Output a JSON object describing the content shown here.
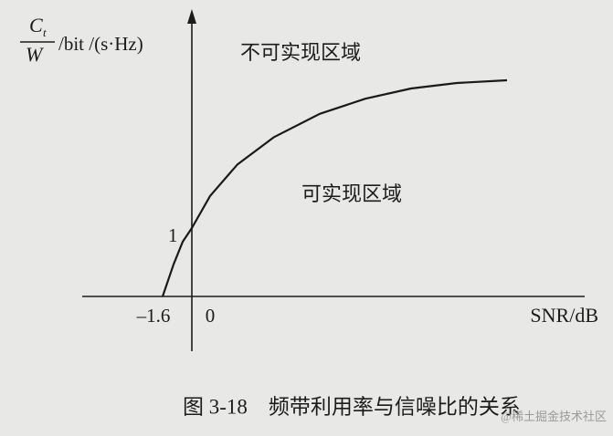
{
  "chart_data": {
    "type": "line",
    "y_label": {
      "numerator": "C",
      "numerator_subscript": "t",
      "denominator": "W",
      "unit": "/bit /(s·Hz)"
    },
    "x_label": "SNR/dB",
    "annotations": [
      "不可实现区域",
      "可实现区域"
    ],
    "caption": "图 3-18　频带利用率与信噪比的关系",
    "watermark": "@稀土掘金技术社区",
    "x": [
      -1.6,
      -1,
      -0.5,
      0,
      1,
      2.5,
      4.5,
      7,
      9.5,
      12,
      14.5,
      17.25
    ],
    "values": [
      0,
      0.47,
      0.8,
      1,
      1.47,
      1.93,
      2.33,
      2.67,
      2.89,
      3.04,
      3.12,
      3.16
    ],
    "color": "#1a1a1a",
    "xlim": [
      -6,
      21.5
    ],
    "ylim": [
      -0.8,
      4.2
    ],
    "xticks": [
      {
        "value": -1.6,
        "label": "–1.6"
      },
      0
    ],
    "yticks": [
      1
    ]
  }
}
